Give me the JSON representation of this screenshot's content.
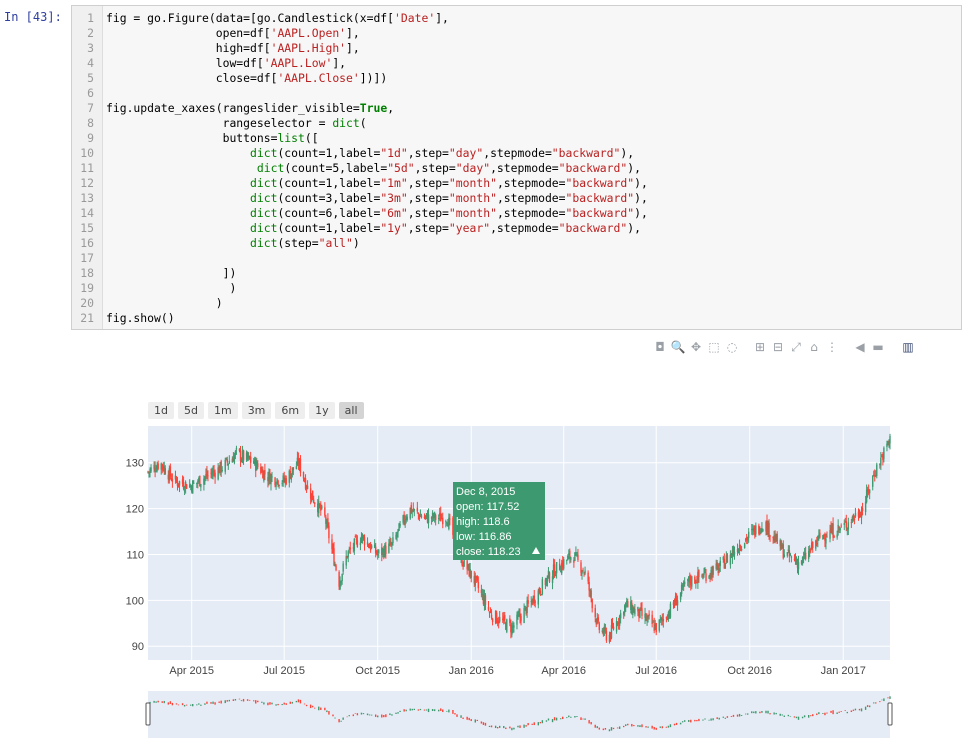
{
  "cell": {
    "prompt": "In  [43]:",
    "lines": [
      {
        "n": "1",
        "code": "fig = go.Figure(data=[go.Candlestick(x=df['Date'],"
      },
      {
        "n": "2",
        "code": "                open=df['AAPL.Open'],"
      },
      {
        "n": "3",
        "code": "                high=df['AAPL.High'],"
      },
      {
        "n": "4",
        "code": "                low=df['AAPL.Low'],"
      },
      {
        "n": "5",
        "code": "                close=df['AAPL.Close'])])"
      },
      {
        "n": "6",
        "code": ""
      },
      {
        "n": "7",
        "code": "fig.update_xaxes(rangeslider_visible=True,"
      },
      {
        "n": "8",
        "code": "                 rangeselector = dict("
      },
      {
        "n": "9",
        "code": "                 buttons=list(["
      },
      {
        "n": "10",
        "code": "                     dict(count=1,label=\"1d\",step=\"day\",stepmode=\"backward\"),"
      },
      {
        "n": "11",
        "code": "                      dict(count=5,label=\"5d\",step=\"day\",stepmode=\"backward\"),"
      },
      {
        "n": "12",
        "code": "                     dict(count=1,label=\"1m\",step=\"month\",stepmode=\"backward\"),"
      },
      {
        "n": "13",
        "code": "                     dict(count=3,label=\"3m\",step=\"month\",stepmode=\"backward\"),"
      },
      {
        "n": "14",
        "code": "                     dict(count=6,label=\"6m\",step=\"month\",stepmode=\"backward\"),"
      },
      {
        "n": "15",
        "code": "                     dict(count=1,label=\"1y\",step=\"year\",stepmode=\"backward\"),"
      },
      {
        "n": "16",
        "code": "                     dict(step=\"all\")"
      },
      {
        "n": "17",
        "code": ""
      },
      {
        "n": "18",
        "code": "                 ])"
      },
      {
        "n": "19",
        "code": "                  )"
      },
      {
        "n": "20",
        "code": "                )"
      },
      {
        "n": "21",
        "code": "fig.show()"
      }
    ]
  },
  "modebar": [
    "camera-icon",
    "zoom-icon",
    "pan-icon",
    "box-select-icon",
    "lasso-icon",
    "zoom-in-icon",
    "zoom-out-icon",
    "autoscale-icon",
    "reset-axes-icon",
    "spike-lines-icon",
    "hover-closest-icon",
    "hover-compare-icon",
    "plotly-logo-icon"
  ],
  "range_buttons": [
    "1d",
    "5d",
    "1m",
    "3m",
    "6m",
    "1y",
    "all"
  ],
  "range_active": "all",
  "tooltip": {
    "date": "Dec 8, 2015",
    "open": "open: 117.52",
    "high": "high: 118.6",
    "low": "low: 116.86",
    "close": "close: 118.23",
    "color": "#3d9970"
  },
  "chart_data": {
    "type": "candlestick",
    "xticks": [
      "Apr 2015",
      "Jul 2015",
      "Oct 2015",
      "Jan 2016",
      "Apr 2016",
      "Jul 2016",
      "Oct 2016",
      "Jan 2017"
    ],
    "yticks": [
      90,
      100,
      110,
      120,
      130
    ],
    "ylim": [
      87,
      138
    ],
    "x_start": "2015-02-17",
    "x_end": "2017-02-16",
    "increasing_color": "#3d9970",
    "decreasing_color": "#ff4136",
    "close_path": [
      [
        "2015-02-17",
        128
      ],
      [
        "2015-03-01",
        130
      ],
      [
        "2015-03-15",
        126
      ],
      [
        "2015-04-01",
        125
      ],
      [
        "2015-04-15",
        127
      ],
      [
        "2015-05-01",
        129
      ],
      [
        "2015-05-15",
        132
      ],
      [
        "2015-06-01",
        130
      ],
      [
        "2015-06-15",
        127
      ],
      [
        "2015-07-01",
        126
      ],
      [
        "2015-07-15",
        130
      ],
      [
        "2015-07-25",
        124
      ],
      [
        "2015-08-10",
        118
      ],
      [
        "2015-08-24",
        104
      ],
      [
        "2015-09-01",
        110
      ],
      [
        "2015-09-15",
        114
      ],
      [
        "2015-10-01",
        110
      ],
      [
        "2015-10-15",
        112
      ],
      [
        "2015-11-01",
        120
      ],
      [
        "2015-11-15",
        118
      ],
      [
        "2015-12-01",
        118
      ],
      [
        "2015-12-08",
        118.23
      ],
      [
        "2015-12-20",
        110
      ],
      [
        "2016-01-05",
        104
      ],
      [
        "2016-01-20",
        97
      ],
      [
        "2016-02-10",
        94
      ],
      [
        "2016-03-01",
        100
      ],
      [
        "2016-03-20",
        106
      ],
      [
        "2016-04-10",
        110
      ],
      [
        "2016-04-22",
        106
      ],
      [
        "2016-05-05",
        94
      ],
      [
        "2016-05-15",
        92
      ],
      [
        "2016-06-01",
        99
      ],
      [
        "2016-06-15",
        97
      ],
      [
        "2016-07-01",
        94
      ],
      [
        "2016-07-15",
        98
      ],
      [
        "2016-08-01",
        104
      ],
      [
        "2016-09-01",
        107
      ],
      [
        "2016-09-20",
        112
      ],
      [
        "2016-10-15",
        117
      ],
      [
        "2016-11-05",
        110
      ],
      [
        "2016-11-20",
        108
      ],
      [
        "2016-12-10",
        114
      ],
      [
        "2017-01-01",
        116
      ],
      [
        "2017-01-20",
        120
      ],
      [
        "2017-02-01",
        128
      ],
      [
        "2017-02-16",
        135
      ]
    ]
  }
}
